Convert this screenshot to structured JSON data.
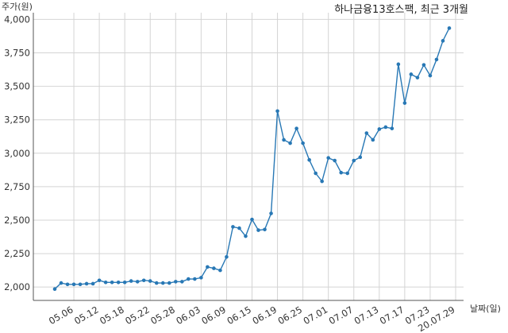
{
  "chart_data": {
    "type": "line",
    "title": "하나금융13호스팩, 최근 3개월",
    "ylabel": "주가(원)",
    "xlabel": "날짜(일)",
    "ylim": [
      1900,
      4050
    ],
    "yticks": [
      2000,
      2250,
      2500,
      2750,
      3000,
      3250,
      3500,
      3750,
      4000
    ],
    "ytick_labels": [
      "2,000",
      "2,250",
      "2,500",
      "2,750",
      "3,000",
      "3,250",
      "3,500",
      "3,750",
      "4,000"
    ],
    "xtick_labels": [
      "05.06",
      "05.12",
      "05.18",
      "05.22",
      "05.28",
      "06.03",
      "06.09",
      "06.15",
      "06.19",
      "06.25",
      "07.01",
      "07.07",
      "07.13",
      "07.17",
      "07.23",
      "20.07.29"
    ],
    "xtick_indices": [
      3,
      7,
      11,
      15,
      19,
      23,
      27,
      31,
      35,
      39,
      43,
      47,
      51,
      55,
      59,
      63
    ],
    "grid": true,
    "series": [
      {
        "color": "#2878b5",
        "values": [
          1985,
          2030,
          2020,
          2020,
          2020,
          2025,
          2025,
          2050,
          2035,
          2035,
          2035,
          2035,
          2045,
          2040,
          2050,
          2045,
          2030,
          2030,
          2030,
          2040,
          2040,
          2060,
          2060,
          2070,
          2150,
          2140,
          2125,
          2225,
          2450,
          2440,
          2380,
          2505,
          2425,
          2430,
          2550,
          3315,
          3100,
          3075,
          3185,
          3075,
          2950,
          2850,
          2790,
          2965,
          2945,
          2855,
          2850,
          2945,
          2970,
          3150,
          3100,
          3180,
          3195,
          3185,
          3665,
          3375,
          3590,
          3565,
          3660,
          3580,
          3700,
          3840,
          3935
        ]
      }
    ]
  }
}
